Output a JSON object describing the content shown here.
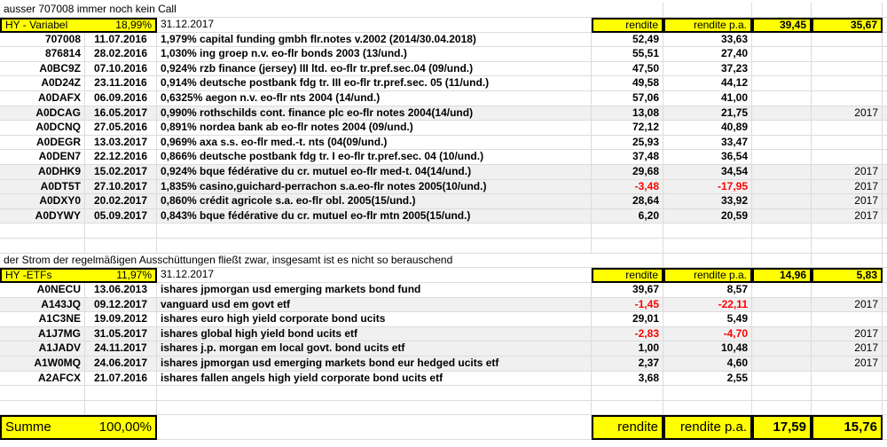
{
  "section1": {
    "note": "ausser 707008 immer noch kein Call",
    "title": "HY - Variabel",
    "share": "18,99%",
    "date": "31.12.2017",
    "col_rendite": "rendite",
    "col_rendite_pa": "rendite p.a.",
    "total_rendite": "39,45",
    "total_rendite_pa": "35,67",
    "rows": [
      {
        "id": "707008",
        "date": "11.07.2016",
        "name": "1,979% capital funding gmbh flr.notes v.2002 (2014/30.04.2018)",
        "rendite": "52,49",
        "rendite_pa": "33,63",
        "year": "",
        "shade": false
      },
      {
        "id": "876814",
        "date": "28.02.2016",
        "name": "1,030% ing groep n.v. eo-flr bonds 2003 (13/und.)",
        "rendite": "55,51",
        "rendite_pa": "27,40",
        "year": "",
        "shade": false
      },
      {
        "id": "A0BC9Z",
        "date": "07.10.2016",
        "name": "0,924% rzb finance (jersey) III ltd. eo-flr tr.pref.sec.04 (09/und.)",
        "rendite": "47,50",
        "rendite_pa": "37,23",
        "year": "",
        "shade": false
      },
      {
        "id": "A0D24Z",
        "date": "23.11.2016",
        "name": "0,914% deutsche postbank fdg tr. III eo-flr tr.pref.sec. 05 (11/und.)",
        "rendite": "49,58",
        "rendite_pa": "44,12",
        "year": "",
        "shade": false
      },
      {
        "id": "A0DAFX",
        "date": "06.09.2016",
        "name": "0,6325% aegon n.v. eo-flr nts 2004 (14/und.)",
        "rendite": "57,06",
        "rendite_pa": "41,00",
        "year": "",
        "shade": false
      },
      {
        "id": "A0DCAG",
        "date": "16.05.2017",
        "name": "0,990% rothschilds cont. finance plc eo-flr notes 2004(14/und)",
        "rendite": "13,08",
        "rendite_pa": "21,75",
        "year": "2017",
        "shade": true
      },
      {
        "id": "A0DCNQ",
        "date": "27.05.2016",
        "name": "0,891% nordea bank ab eo-flr notes 2004 (09/und.)",
        "rendite": "72,12",
        "rendite_pa": "40,89",
        "year": "",
        "shade": false
      },
      {
        "id": "A0DEGR",
        "date": "13.03.2017",
        "name": "0,969% axa s.s. eo-flr med.-t. nts (04(09/und.)",
        "rendite": "25,93",
        "rendite_pa": "33,47",
        "year": "",
        "shade": false
      },
      {
        "id": "A0DEN7",
        "date": "22.12.2016",
        "name": "0,866% deutsche postbank fdg tr. I eo-flr tr.pref.sec. 04 (10/und.)",
        "rendite": "37,48",
        "rendite_pa": "36,54",
        "year": "",
        "shade": false
      },
      {
        "id": "A0DHK9",
        "date": "15.02.2017",
        "name": "0,924% bque fédérative du cr. mutuel eo-flr med-t. 04(14/und.)",
        "rendite": "29,68",
        "rendite_pa": "34,54",
        "year": "2017",
        "shade": true
      },
      {
        "id": "A0DT5T",
        "date": "27.10.2017",
        "name": "1,835% casino,guichard-perrachon s.a.eo-flr notes 2005(10/und.)",
        "rendite": "-3,48",
        "rendite_pa": "-17,95",
        "year": "2017",
        "shade": true
      },
      {
        "id": "A0DXY0",
        "date": "20.02.2017",
        "name": "0,860% crédit agricole s.a. eo-flr obl. 2005(15/und.)",
        "rendite": "28,64",
        "rendite_pa": "33,92",
        "year": "2017",
        "shade": true
      },
      {
        "id": "A0DYWY",
        "date": "05.09.2017",
        "name": "0,843% bque fédérative du cr. mutuel eo-flr mtn 2005(15/und.)",
        "rendite": "6,20",
        "rendite_pa": "20,59",
        "year": "2017",
        "shade": true
      }
    ]
  },
  "section2": {
    "note": "der Strom der regelmäßigen Ausschüttungen fließt zwar, insgesamt ist es nicht so berauschend",
    "title": "HY -ETFs",
    "share": "11,97%",
    "date": "31.12.2017",
    "col_rendite": "rendite",
    "col_rendite_pa": "rendite p.a.",
    "total_rendite": "14,96",
    "total_rendite_pa": "5,83",
    "rows": [
      {
        "id": "A0NECU",
        "date": "13.06.2013",
        "name": "ishares jpmorgan usd emerging markets bond fund",
        "rendite": "39,67",
        "rendite_pa": "8,57",
        "year": "",
        "shade": false
      },
      {
        "id": "A143JQ",
        "date": "09.12.2017",
        "name": "vanguard usd em govt etf",
        "rendite": "-1,45",
        "rendite_pa": "-22,11",
        "year": "2017",
        "shade": true
      },
      {
        "id": "A1C3NE",
        "date": "19.09.2012",
        "name": "ishares euro high yield corporate bond ucits",
        "rendite": "29,01",
        "rendite_pa": "5,49",
        "year": "",
        "shade": false
      },
      {
        "id": "A1J7MG",
        "date": "31.05.2017",
        "name": "ishares global high yield bond ucits etf",
        "rendite": "-2,83",
        "rendite_pa": "-4,70",
        "year": "2017",
        "shade": true
      },
      {
        "id": "A1JADV",
        "date": "24.11.2017",
        "name": "ishares j.p. morgan em local govt. bond ucits etf",
        "rendite": "1,00",
        "rendite_pa": "10,48",
        "year": "2017",
        "shade": true
      },
      {
        "id": "A1W0MQ",
        "date": "24.06.2017",
        "name": "ishares jpmorgan usd emerging markets bond eur hedged ucits etf",
        "rendite": "2,37",
        "rendite_pa": "4,60",
        "year": "2017",
        "shade": true
      },
      {
        "id": "A2AFCX",
        "date": "21.07.2016",
        "name": "ishares fallen angels high yield corporate bond ucits etf",
        "rendite": "3,68",
        "rendite_pa": "2,55",
        "year": "",
        "shade": false
      }
    ]
  },
  "summary": {
    "title": "Summe",
    "share": "100,00%",
    "col_rendite": "rendite",
    "col_rendite_pa": "rendite p.a.",
    "total_rendite": "17,59",
    "total_rendite_pa": "15,76"
  },
  "colors": {
    "highlight": "#ffff00",
    "negative": "#ff0000",
    "shade": "#f0f0f0"
  }
}
